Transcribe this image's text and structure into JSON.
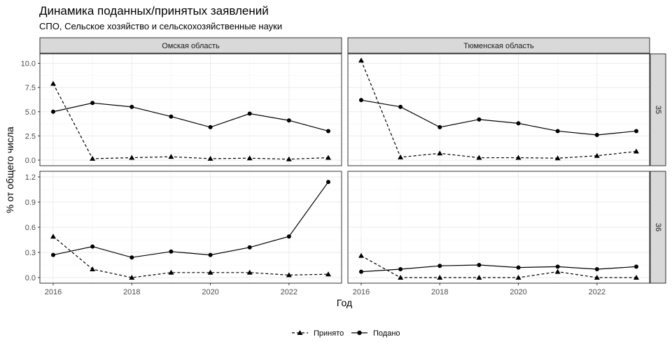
{
  "title": "Динамика поданных/принятых заявлений",
  "subtitle": "СПО, Сельское хозяйство и сельскохозяйственные науки",
  "xlabel": "Год",
  "ylabel": "% от общего числа",
  "columns": [
    "Омская область",
    "Тюменская область"
  ],
  "rows": [
    "35",
    "36"
  ],
  "legend": {
    "position": "bottom",
    "items": [
      {
        "key": "accepted",
        "label": "Принято",
        "shape": "triangle",
        "linetype": "dashed"
      },
      {
        "key": "submitted",
        "label": "Подано",
        "shape": "circle",
        "linetype": "solid"
      }
    ]
  },
  "chart_data": {
    "type": "line",
    "grid": true,
    "facets": "rows x columns, shared x, free y per row",
    "x": [
      2016,
      2017,
      2018,
      2019,
      2020,
      2021,
      2022,
      2023
    ],
    "x_ticks": [
      2016,
      2018,
      2020,
      2022
    ],
    "xlim": [
      2016,
      2023
    ],
    "row_scales": [
      {
        "ylim": [
          0,
          10.4
        ],
        "ticks": [
          "0.0",
          "2.5",
          "5.0",
          "7.5",
          "10.0"
        ]
      },
      {
        "ylim": [
          0,
          1.2
        ],
        "ticks": [
          "0.0",
          "0.3",
          "0.6",
          "0.9",
          "1.2"
        ]
      }
    ],
    "panels": [
      {
        "column": "Омская область",
        "row": "35",
        "series": [
          {
            "name": "Принято",
            "values": [
              7.9,
              0.15,
              0.25,
              0.35,
              0.15,
              0.2,
              0.1,
              0.25
            ]
          },
          {
            "name": "Подано",
            "values": [
              5.0,
              5.9,
              5.5,
              4.5,
              3.4,
              4.8,
              4.1,
              3.0
            ]
          }
        ]
      },
      {
        "column": "Тюменская область",
        "row": "35",
        "series": [
          {
            "name": "Принято",
            "values": [
              10.3,
              0.3,
              0.7,
              0.25,
              0.25,
              0.2,
              0.45,
              0.9
            ]
          },
          {
            "name": "Подано",
            "values": [
              6.2,
              5.5,
              3.4,
              4.2,
              3.8,
              3.0,
              2.6,
              3.0
            ]
          }
        ]
      },
      {
        "column": "Омская область",
        "row": "36",
        "series": [
          {
            "name": "Принято",
            "values": [
              0.49,
              0.1,
              0.0,
              0.06,
              0.06,
              0.06,
              0.03,
              0.04
            ]
          },
          {
            "name": "Подано",
            "values": [
              0.27,
              0.37,
              0.24,
              0.31,
              0.27,
              0.36,
              0.49,
              1.14
            ]
          }
        ]
      },
      {
        "column": "Тюменская область",
        "row": "36",
        "series": [
          {
            "name": "Принято",
            "values": [
              0.26,
              0.0,
              0.0,
              0.0,
              0.0,
              0.07,
              0.0,
              0.0
            ]
          },
          {
            "name": "Подано",
            "values": [
              0.07,
              0.1,
              0.14,
              0.15,
              0.12,
              0.13,
              0.1,
              0.13
            ]
          }
        ]
      }
    ]
  }
}
